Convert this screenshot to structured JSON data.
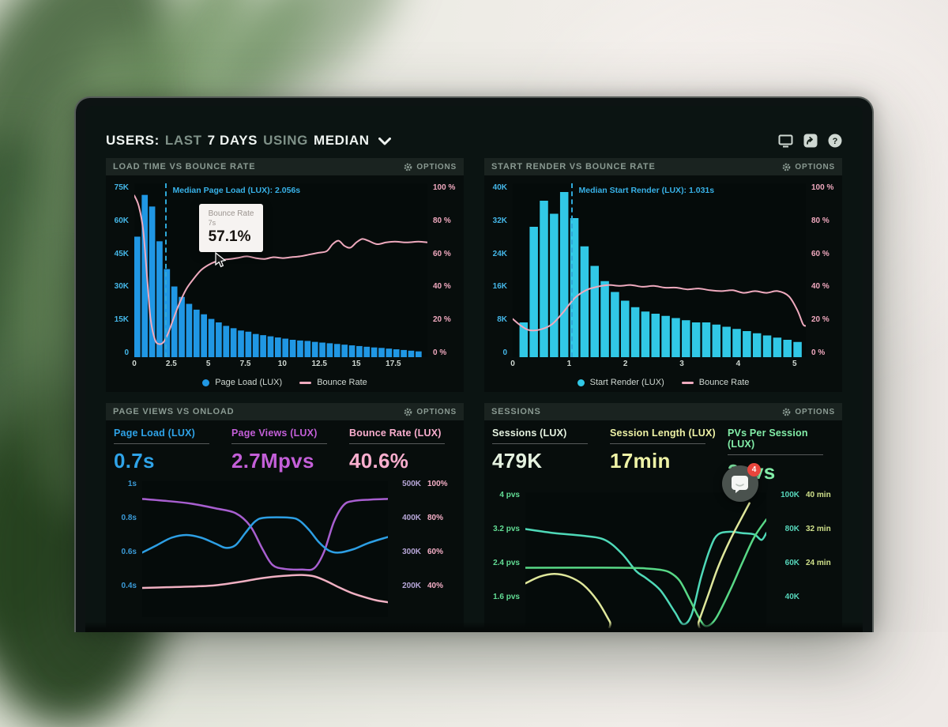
{
  "labels": {
    "options": "OPTIONS"
  },
  "header": {
    "segments": [
      {
        "text": "USERS:",
        "strong": true
      },
      {
        "text": "LAST",
        "strong": false
      },
      {
        "text": "7 DAYS",
        "strong": true
      },
      {
        "text": "USING",
        "strong": false
      },
      {
        "text": "MEDIAN",
        "strong": true
      }
    ],
    "icons": [
      "display",
      "share",
      "help"
    ]
  },
  "chat": {
    "badge": "4"
  },
  "colors": {
    "bars_blue": "#2097e4",
    "bars_cyan": "#31c8e6",
    "bounce_pink": "#efaabe",
    "axis_cyan": "#45b7e8",
    "axis_pink": "#f0a9bf",
    "purple": "#bb63d6",
    "blue": "#2fa3e8",
    "green": "#82eda8",
    "yellow": "#eff3a8",
    "badge_red": "#e8453c"
  },
  "chart_data": [
    {
      "id": "load-time-vs-bounce-rate",
      "type": "bar",
      "title": "LOAD TIME VS BOUNCE RATE",
      "x_axis": {
        "ticks": [
          0,
          2.5,
          5,
          7.5,
          10,
          12.5,
          15,
          17.5
        ],
        "max": 19.8,
        "unit": "s"
      },
      "y_left": {
        "labels": [
          "75K",
          "60K",
          "45K",
          "30K",
          "15K",
          "0"
        ],
        "max": 75
      },
      "y_right": {
        "labels": [
          "100 %",
          "80 %",
          "60 %",
          "40 %",
          "20 %",
          "0 %"
        ],
        "max": 100
      },
      "bars": {
        "name": "Page Load (LUX)",
        "color": "#2097e4",
        "x_start": 0,
        "step": 0.5,
        "values_k": [
          52,
          70,
          65,
          50,
          38,
          30.5,
          26,
          23,
          20.5,
          18.5,
          16.5,
          15,
          13.5,
          12.5,
          11.5,
          11,
          10,
          9.5,
          9,
          8.5,
          8,
          7.5,
          7.2,
          7,
          6.6,
          6.3,
          6,
          5.7,
          5.4,
          5.1,
          4.8,
          4.5,
          4.2,
          4,
          3.7,
          3.4,
          3.1,
          2.8,
          2.5
        ]
      },
      "line": {
        "name": "Bounce Rate",
        "color": "#efaabe",
        "points_pct": [
          [
            0,
            93
          ],
          [
            0.3,
            87
          ],
          [
            0.6,
            73
          ],
          [
            0.9,
            42
          ],
          [
            1.1,
            22
          ],
          [
            1.4,
            10
          ],
          [
            1.7,
            7.5
          ],
          [
            2,
            9
          ],
          [
            2.3,
            14
          ],
          [
            2.6,
            21
          ],
          [
            3,
            30
          ],
          [
            3.5,
            39
          ],
          [
            4,
            45
          ],
          [
            4.5,
            50
          ],
          [
            5,
            53
          ],
          [
            5.5,
            55
          ],
          [
            6,
            56
          ],
          [
            6.5,
            56.5
          ],
          [
            7,
            57.1
          ],
          [
            7.6,
            58
          ],
          [
            8.2,
            57
          ],
          [
            8.8,
            56.5
          ],
          [
            9.4,
            57.5
          ],
          [
            10,
            57
          ],
          [
            10.6,
            57.5
          ],
          [
            11.2,
            58
          ],
          [
            11.8,
            59
          ],
          [
            12.4,
            60
          ],
          [
            13,
            61
          ],
          [
            13.4,
            65
          ],
          [
            13.8,
            67
          ],
          [
            14.2,
            64
          ],
          [
            14.6,
            63
          ],
          [
            15,
            66
          ],
          [
            15.4,
            68
          ],
          [
            15.8,
            67
          ],
          [
            16.4,
            65
          ],
          [
            17,
            66
          ],
          [
            17.6,
            66.5
          ],
          [
            18.4,
            66
          ],
          [
            19.2,
            66.5
          ],
          [
            19.8,
            66
          ]
        ]
      },
      "median": {
        "x": 2.056,
        "label": "Median Page Load (LUX): 2.056s"
      },
      "tooltip": {
        "title": "Bounce Rate",
        "subtitle": "7s",
        "value": "57.1%"
      },
      "legend": [
        {
          "label": "Page Load (LUX)",
          "marker": "dot",
          "color": "#2097e4"
        },
        {
          "label": "Bounce Rate",
          "marker": "dash",
          "color": "#efaabe"
        }
      ]
    },
    {
      "id": "start-render-vs-bounce-rate",
      "type": "bar",
      "title": "START RENDER VS BOUNCE RATE",
      "x_axis": {
        "ticks": [
          0,
          1,
          2,
          3,
          4,
          5
        ],
        "max": 5.2,
        "unit": "s"
      },
      "y_left": {
        "labels": [
          "40K",
          "32K",
          "24K",
          "16K",
          "8K",
          "0"
        ],
        "max": 40
      },
      "y_right": {
        "labels": [
          "100 %",
          "80 %",
          "60 %",
          "40 %",
          "20 %",
          "0 %"
        ],
        "max": 100
      },
      "bars": {
        "name": "Start Render (LUX)",
        "color": "#31c8e6",
        "x_start": 0.12,
        "step": 0.18,
        "values_k": [
          8,
          30,
          36,
          33,
          38,
          32,
          25.5,
          21,
          17.5,
          15,
          13,
          11.5,
          10.5,
          10,
          9.5,
          9,
          8.5,
          8,
          8,
          7.5,
          7,
          6.5,
          6,
          5.5,
          5,
          4.5,
          4,
          3.5
        ]
      },
      "line": {
        "name": "Bounce Rate",
        "color": "#efaabe",
        "points_pct": [
          [
            0,
            22
          ],
          [
            0.15,
            18
          ],
          [
            0.3,
            15.5
          ],
          [
            0.5,
            16
          ],
          [
            0.7,
            19
          ],
          [
            0.9,
            26
          ],
          [
            1.1,
            34
          ],
          [
            1.3,
            38.5
          ],
          [
            1.5,
            40.5
          ],
          [
            1.7,
            41.5
          ],
          [
            1.9,
            41
          ],
          [
            2.1,
            41.5
          ],
          [
            2.3,
            40.5
          ],
          [
            2.5,
            41
          ],
          [
            2.7,
            40
          ],
          [
            2.9,
            40
          ],
          [
            3.1,
            39
          ],
          [
            3.3,
            39.5
          ],
          [
            3.5,
            38.5
          ],
          [
            3.7,
            38
          ],
          [
            3.9,
            38.5
          ],
          [
            4.1,
            37
          ],
          [
            4.3,
            38
          ],
          [
            4.5,
            37
          ],
          [
            4.7,
            38
          ],
          [
            4.9,
            35
          ],
          [
            5.05,
            27
          ],
          [
            5.15,
            19
          ],
          [
            5.2,
            18
          ]
        ]
      },
      "median": {
        "x": 1.031,
        "label": "Median Start Render (LUX): 1.031s"
      },
      "legend": [
        {
          "label": "Start Render (LUX)",
          "marker": "dot",
          "color": "#31c8e6"
        },
        {
          "label": "Bounce Rate",
          "marker": "dash",
          "color": "#efaabe"
        }
      ]
    },
    {
      "id": "page-views-vs-onload",
      "type": "line",
      "title": "PAGE VIEWS VS ONLOAD",
      "metrics": [
        {
          "label": "Page Load (LUX)",
          "value": "0.7s",
          "color": "#2fa3e8"
        },
        {
          "label": "Page Views (LUX)",
          "value": "2.7Mpvs",
          "color": "#c35fd8"
        },
        {
          "label": "Bounce Rate (LUX)",
          "value": "40.6%",
          "color": "#f9aece"
        }
      ],
      "y_left": {
        "labels": [
          "1s",
          "0.8s",
          "0.6s",
          "0.4s"
        ]
      },
      "y_right": {
        "rows": [
          [
            "500K",
            "100%"
          ],
          [
            "400K",
            "80%"
          ],
          [
            "300K",
            "60%"
          ],
          [
            "200K",
            "40%"
          ]
        ]
      },
      "series": [
        {
          "name": "Page Views (LUX)",
          "color": "#a85fd0",
          "points": [
            [
              0,
              0.13
            ],
            [
              0.1,
              0.145
            ],
            [
              0.2,
              0.165
            ],
            [
              0.3,
              0.2
            ],
            [
              0.38,
              0.235
            ],
            [
              0.44,
              0.33
            ],
            [
              0.49,
              0.5
            ],
            [
              0.53,
              0.615
            ],
            [
              0.58,
              0.645
            ],
            [
              0.65,
              0.65
            ],
            [
              0.7,
              0.64
            ],
            [
              0.74,
              0.52
            ],
            [
              0.78,
              0.3
            ],
            [
              0.82,
              0.175
            ],
            [
              0.86,
              0.145
            ],
            [
              0.93,
              0.135
            ],
            [
              1,
              0.13
            ]
          ]
        },
        {
          "name": "Page Load (LUX)",
          "color": "#2d9fe4",
          "points": [
            [
              0,
              0.525
            ],
            [
              0.06,
              0.47
            ],
            [
              0.12,
              0.415
            ],
            [
              0.18,
              0.395
            ],
            [
              0.24,
              0.415
            ],
            [
              0.3,
              0.46
            ],
            [
              0.34,
              0.49
            ],
            [
              0.38,
              0.47
            ],
            [
              0.42,
              0.38
            ],
            [
              0.46,
              0.295
            ],
            [
              0.5,
              0.268
            ],
            [
              0.6,
              0.268
            ],
            [
              0.64,
              0.29
            ],
            [
              0.68,
              0.36
            ],
            [
              0.72,
              0.45
            ],
            [
              0.76,
              0.51
            ],
            [
              0.8,
              0.525
            ],
            [
              0.86,
              0.5
            ],
            [
              0.92,
              0.455
            ],
            [
              1,
              0.41
            ]
          ]
        },
        {
          "name": "Bounce Rate (LUX)",
          "color": "#f0b0c2",
          "points": [
            [
              0,
              0.785
            ],
            [
              0.1,
              0.78
            ],
            [
              0.2,
              0.775
            ],
            [
              0.3,
              0.765
            ],
            [
              0.4,
              0.74
            ],
            [
              0.48,
              0.715
            ],
            [
              0.55,
              0.7
            ],
            [
              0.6,
              0.693
            ],
            [
              0.65,
              0.69
            ],
            [
              0.7,
              0.7
            ],
            [
              0.75,
              0.735
            ],
            [
              0.8,
              0.78
            ],
            [
              0.85,
              0.82
            ],
            [
              0.9,
              0.85
            ],
            [
              0.95,
              0.875
            ],
            [
              1,
              0.89
            ]
          ]
        }
      ]
    },
    {
      "id": "sessions",
      "type": "line",
      "title": "SESSIONS",
      "metrics": [
        {
          "label": "Sessions (LUX)",
          "value": "479K",
          "color": "#e5f2e0"
        },
        {
          "label": "Session Length (LUX)",
          "value": "17min",
          "color": "#eef2a6"
        },
        {
          "label": "PVs Per Session (LUX)",
          "value": "2pvs",
          "color": "#82eda8"
        }
      ],
      "y_left": {
        "labels": [
          "4 pvs",
          "3.2 pvs",
          "2.4 pvs",
          "1.6 pvs"
        ]
      },
      "y_right": {
        "rows": [
          [
            "100K",
            "40 min"
          ],
          [
            "80K",
            "32 min"
          ],
          [
            "60K",
            "24 min"
          ],
          [
            "40K",
            ""
          ]
        ]
      },
      "series": [
        {
          "name": "Sessions (LUX)",
          "color": "#4fd9b8",
          "points": [
            [
              0,
              0.27
            ],
            [
              0.12,
              0.3
            ],
            [
              0.24,
              0.32
            ],
            [
              0.33,
              0.35
            ],
            [
              0.4,
              0.45
            ],
            [
              0.46,
              0.58
            ],
            [
              0.5,
              0.63
            ],
            [
              0.56,
              0.72
            ],
            [
              0.62,
              0.88
            ],
            [
              0.655,
              0.97
            ],
            [
              0.69,
              0.9
            ],
            [
              0.73,
              0.62
            ],
            [
              0.77,
              0.4
            ],
            [
              0.8,
              0.31
            ],
            [
              0.85,
              0.29
            ],
            [
              0.9,
              0.3
            ],
            [
              0.95,
              0.31
            ],
            [
              0.98,
              0.35
            ],
            [
              1,
              0.3
            ]
          ]
        },
        {
          "name": "PVs Per Session (LUX)",
          "color": "#58d886",
          "points": [
            [
              0,
              0.555
            ],
            [
              0.4,
              0.555
            ],
            [
              0.5,
              0.56
            ],
            [
              0.56,
              0.57
            ],
            [
              0.6,
              0.59
            ],
            [
              0.64,
              0.65
            ],
            [
              0.68,
              0.78
            ],
            [
              0.72,
              0.92
            ],
            [
              0.75,
              0.985
            ],
            [
              0.79,
              0.93
            ],
            [
              0.85,
              0.72
            ],
            [
              0.9,
              0.52
            ],
            [
              0.95,
              0.33
            ],
            [
              1,
              0.2
            ]
          ]
        },
        {
          "name": "Session Length (LUX)",
          "color": "#dfe79b",
          "points": [
            [
              0,
              0.67
            ],
            [
              0.06,
              0.62
            ],
            [
              0.12,
              0.6
            ],
            [
              0.18,
              0.62
            ],
            [
              0.24,
              0.68
            ],
            [
              0.3,
              0.8
            ],
            [
              0.35,
              0.95
            ],
            [
              0.38,
              1.04
            ],
            [
              0.7,
              1.06
            ],
            [
              0.72,
              0.95
            ],
            [
              0.76,
              0.75
            ],
            [
              0.8,
              0.55
            ],
            [
              0.85,
              0.35
            ],
            [
              0.9,
              0.18
            ],
            [
              0.93,
              0.08
            ]
          ]
        }
      ]
    }
  ]
}
